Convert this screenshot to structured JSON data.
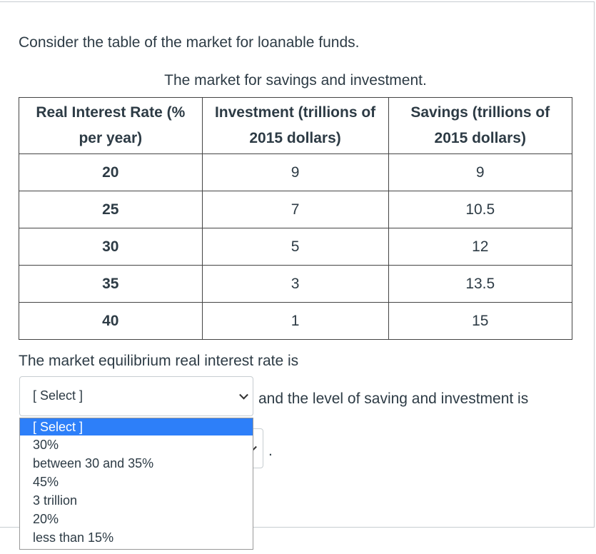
{
  "intro": "Consider the table of the market for loanable funds.",
  "table": {
    "caption": "The market for savings and investment.",
    "headers": [
      "Real Interest Rate (% per year)",
      "Investment (trillions of 2015 dollars)",
      "Savings (trillions of 2015 dollars)"
    ],
    "rows": [
      [
        "20",
        "9",
        "9"
      ],
      [
        "25",
        "7",
        "10.5"
      ],
      [
        "30",
        "5",
        "12"
      ],
      [
        "35",
        "3",
        "13.5"
      ],
      [
        "40",
        "1",
        "15"
      ]
    ]
  },
  "question": "The market equilibrium real interest rate is",
  "select_placeholder": "[ Select ]",
  "question_continued": "and the level of saving and investment is",
  "period": ".",
  "options": [
    "[ Select ]",
    "30%",
    "between 30 and 35%",
    "45%",
    "3 trillion",
    "20%",
    "less than 15%"
  ]
}
